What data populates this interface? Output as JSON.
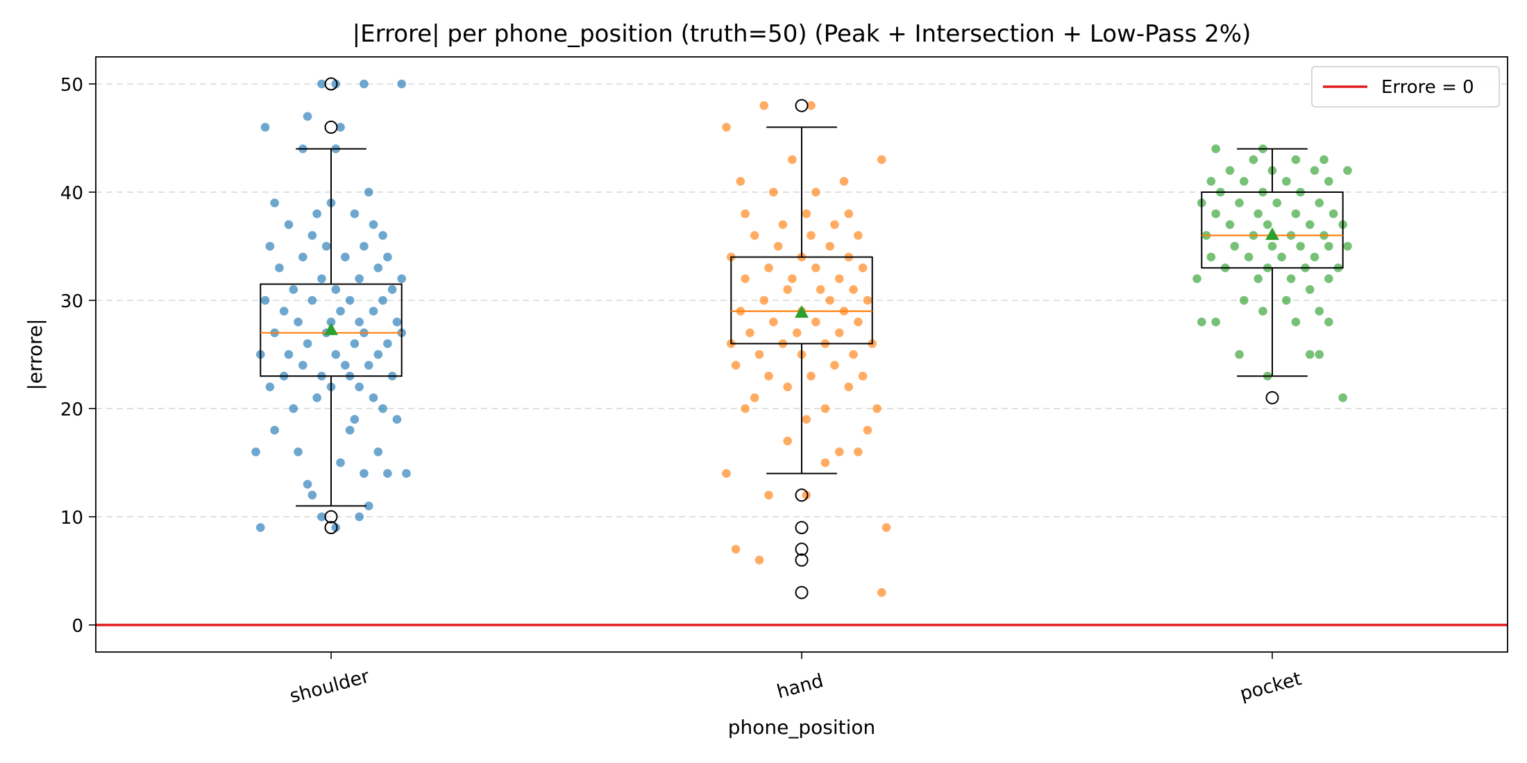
{
  "chart_data": {
    "type": "box",
    "title": "|Errore| per phone_position (truth=50) (Peak + Intersection + Low-Pass 2%)",
    "xlabel": "phone_position",
    "ylabel": "|errore|",
    "ylim": [
      -2.5,
      52.5
    ],
    "yticks": [
      0,
      10,
      20,
      30,
      40,
      50
    ],
    "grid": "horizontal dashed",
    "legend": {
      "placement": "top-right",
      "entries": [
        {
          "label": "Errore = 0",
          "color": "#e41a1c"
        }
      ]
    },
    "reference_line": {
      "y": 0,
      "label": "Errore = 0",
      "color": "#e41a1c"
    },
    "categories": [
      "shoulder",
      "hand",
      "pocket"
    ],
    "colors": {
      "median": "#ff7f0e",
      "mean": "#2ca02c",
      "box": "#000000"
    },
    "series": [
      {
        "category": "shoulder",
        "color": "#1f77b4",
        "box": {
          "whisker_low": 11,
          "q1": 23,
          "median": 27,
          "q3": 31.5,
          "whisker_high": 44,
          "mean": 27.3
        },
        "outliers": [
          9,
          10,
          46,
          50
        ],
        "points": [
          [
            -0.15,
            9
          ],
          [
            0.01,
            9
          ],
          [
            -0.02,
            10
          ],
          [
            0.06,
            10
          ],
          [
            0.08,
            11
          ],
          [
            -0.04,
            12
          ],
          [
            -0.05,
            13
          ],
          [
            0.07,
            14
          ],
          [
            0.16,
            14
          ],
          [
            0.12,
            14
          ],
          [
            0.02,
            15
          ],
          [
            -0.16,
            16
          ],
          [
            -0.07,
            16
          ],
          [
            0.1,
            16
          ],
          [
            0.04,
            18
          ],
          [
            -0.12,
            18
          ],
          [
            0.05,
            19
          ],
          [
            0.14,
            19
          ],
          [
            -0.08,
            20
          ],
          [
            0.11,
            20
          ],
          [
            -0.03,
            21
          ],
          [
            0.09,
            21
          ],
          [
            -0.13,
            22
          ],
          [
            0.0,
            22
          ],
          [
            0.06,
            22
          ],
          [
            -0.1,
            23
          ],
          [
            -0.02,
            23
          ],
          [
            0.04,
            23
          ],
          [
            0.13,
            23
          ],
          [
            -0.06,
            24
          ],
          [
            0.03,
            24
          ],
          [
            0.08,
            24
          ],
          [
            -0.15,
            25
          ],
          [
            -0.09,
            25
          ],
          [
            0.01,
            25
          ],
          [
            0.1,
            25
          ],
          [
            -0.05,
            26
          ],
          [
            0.05,
            26
          ],
          [
            0.12,
            26
          ],
          [
            -0.12,
            27
          ],
          [
            -0.01,
            27
          ],
          [
            0.07,
            27
          ],
          [
            0.15,
            27
          ],
          [
            -0.07,
            28
          ],
          [
            0.0,
            28
          ],
          [
            0.06,
            28
          ],
          [
            0.14,
            28
          ],
          [
            -0.1,
            29
          ],
          [
            0.02,
            29
          ],
          [
            0.09,
            29
          ],
          [
            -0.14,
            30
          ],
          [
            -0.04,
            30
          ],
          [
            0.04,
            30
          ],
          [
            0.11,
            30
          ],
          [
            -0.08,
            31
          ],
          [
            0.01,
            31
          ],
          [
            0.13,
            31
          ],
          [
            -0.02,
            32
          ],
          [
            0.06,
            32
          ],
          [
            0.15,
            32
          ],
          [
            -0.11,
            33
          ],
          [
            0.1,
            33
          ],
          [
            -0.06,
            34
          ],
          [
            0.03,
            34
          ],
          [
            0.12,
            34
          ],
          [
            -0.13,
            35
          ],
          [
            -0.01,
            35
          ],
          [
            0.07,
            35
          ],
          [
            -0.04,
            36
          ],
          [
            0.11,
            36
          ],
          [
            -0.09,
            37
          ],
          [
            0.09,
            37
          ],
          [
            -0.03,
            38
          ],
          [
            0.05,
            38
          ],
          [
            -0.12,
            39
          ],
          [
            0.0,
            39
          ],
          [
            0.08,
            40
          ],
          [
            -0.06,
            44
          ],
          [
            0.01,
            44
          ],
          [
            -0.14,
            46
          ],
          [
            0.02,
            46
          ],
          [
            -0.05,
            47
          ],
          [
            -0.02,
            50
          ],
          [
            0.07,
            50
          ],
          [
            0.01,
            50
          ],
          [
            0.15,
            50
          ]
        ]
      },
      {
        "category": "hand",
        "color": "#ff7f0e",
        "box": {
          "whisker_low": 14,
          "q1": 26,
          "median": 29,
          "q3": 34,
          "whisker_high": 46,
          "mean": 28.9
        },
        "outliers": [
          3,
          6,
          7,
          9,
          12,
          48
        ],
        "points": [
          [
            0.17,
            3
          ],
          [
            -0.09,
            6
          ],
          [
            -0.14,
            7
          ],
          [
            0.18,
            9
          ],
          [
            -0.07,
            12
          ],
          [
            0.01,
            12
          ],
          [
            -0.16,
            14
          ],
          [
            0.05,
            15
          ],
          [
            0.08,
            16
          ],
          [
            0.12,
            16
          ],
          [
            -0.03,
            17
          ],
          [
            0.14,
            18
          ],
          [
            0.01,
            19
          ],
          [
            -0.12,
            20
          ],
          [
            0.05,
            20
          ],
          [
            0.16,
            20
          ],
          [
            -0.1,
            21
          ],
          [
            -0.03,
            22
          ],
          [
            0.1,
            22
          ],
          [
            -0.07,
            23
          ],
          [
            0.02,
            23
          ],
          [
            0.13,
            23
          ],
          [
            -0.14,
            24
          ],
          [
            0.07,
            24
          ],
          [
            -0.09,
            25
          ],
          [
            0.0,
            25
          ],
          [
            0.11,
            25
          ],
          [
            -0.15,
            26
          ],
          [
            -0.04,
            26
          ],
          [
            0.05,
            26
          ],
          [
            0.15,
            26
          ],
          [
            -0.11,
            27
          ],
          [
            -0.01,
            27
          ],
          [
            0.08,
            27
          ],
          [
            -0.06,
            28
          ],
          [
            0.03,
            28
          ],
          [
            0.12,
            28
          ],
          [
            -0.13,
            29
          ],
          [
            0.0,
            29
          ],
          [
            0.09,
            29
          ],
          [
            -0.08,
            30
          ],
          [
            0.06,
            30
          ],
          [
            0.14,
            30
          ],
          [
            -0.03,
            31
          ],
          [
            0.04,
            31
          ],
          [
            0.11,
            31
          ],
          [
            -0.12,
            32
          ],
          [
            -0.02,
            32
          ],
          [
            0.08,
            32
          ],
          [
            -0.07,
            33
          ],
          [
            0.03,
            33
          ],
          [
            0.13,
            33
          ],
          [
            -0.15,
            34
          ],
          [
            0.0,
            34
          ],
          [
            0.1,
            34
          ],
          [
            -0.05,
            35
          ],
          [
            0.06,
            35
          ],
          [
            -0.1,
            36
          ],
          [
            0.02,
            36
          ],
          [
            0.12,
            36
          ],
          [
            -0.04,
            37
          ],
          [
            0.07,
            37
          ],
          [
            -0.12,
            38
          ],
          [
            0.01,
            38
          ],
          [
            0.1,
            38
          ],
          [
            -0.06,
            40
          ],
          [
            0.03,
            40
          ],
          [
            -0.13,
            41
          ],
          [
            0.09,
            41
          ],
          [
            -0.02,
            43
          ],
          [
            0.17,
            43
          ],
          [
            -0.16,
            46
          ],
          [
            -0.08,
            48
          ],
          [
            0.02,
            48
          ]
        ]
      },
      {
        "category": "pocket",
        "color": "#2ca02c",
        "box": {
          "whisker_low": 23,
          "q1": 33,
          "median": 36,
          "q3": 40,
          "whisker_high": 44,
          "mean": 36.1
        },
        "outliers": [
          21
        ],
        "points": [
          [
            0.15,
            21
          ],
          [
            -0.01,
            23
          ],
          [
            -0.07,
            25
          ],
          [
            0.1,
            25
          ],
          [
            0.08,
            25
          ],
          [
            -0.12,
            28
          ],
          [
            -0.15,
            28
          ],
          [
            0.05,
            28
          ],
          [
            0.12,
            28
          ],
          [
            -0.02,
            29
          ],
          [
            0.1,
            29
          ],
          [
            -0.06,
            30
          ],
          [
            0.03,
            30
          ],
          [
            0.08,
            31
          ],
          [
            -0.16,
            32
          ],
          [
            -0.03,
            32
          ],
          [
            0.04,
            32
          ],
          [
            0.12,
            32
          ],
          [
            -0.1,
            33
          ],
          [
            -0.01,
            33
          ],
          [
            0.07,
            33
          ],
          [
            0.14,
            33
          ],
          [
            -0.13,
            34
          ],
          [
            -0.05,
            34
          ],
          [
            0.02,
            34
          ],
          [
            0.09,
            34
          ],
          [
            -0.08,
            35
          ],
          [
            0.0,
            35
          ],
          [
            0.06,
            35
          ],
          [
            0.12,
            35
          ],
          [
            0.16,
            35
          ],
          [
            -0.14,
            36
          ],
          [
            -0.04,
            36
          ],
          [
            0.04,
            36
          ],
          [
            0.11,
            36
          ],
          [
            -0.09,
            37
          ],
          [
            -0.01,
            37
          ],
          [
            0.08,
            37
          ],
          [
            0.15,
            37
          ],
          [
            -0.12,
            38
          ],
          [
            -0.03,
            38
          ],
          [
            0.05,
            38
          ],
          [
            0.13,
            38
          ],
          [
            -0.07,
            39
          ],
          [
            0.01,
            39
          ],
          [
            0.1,
            39
          ],
          [
            -0.15,
            39
          ],
          [
            -0.11,
            40
          ],
          [
            -0.02,
            40
          ],
          [
            0.06,
            40
          ],
          [
            -0.06,
            41
          ],
          [
            0.03,
            41
          ],
          [
            0.12,
            41
          ],
          [
            -0.13,
            41
          ],
          [
            -0.09,
            42
          ],
          [
            0.0,
            42
          ],
          [
            0.09,
            42
          ],
          [
            0.16,
            42
          ],
          [
            -0.04,
            43
          ],
          [
            0.05,
            43
          ],
          [
            0.11,
            43
          ],
          [
            -0.12,
            44
          ],
          [
            -0.02,
            44
          ]
        ]
      }
    ]
  }
}
